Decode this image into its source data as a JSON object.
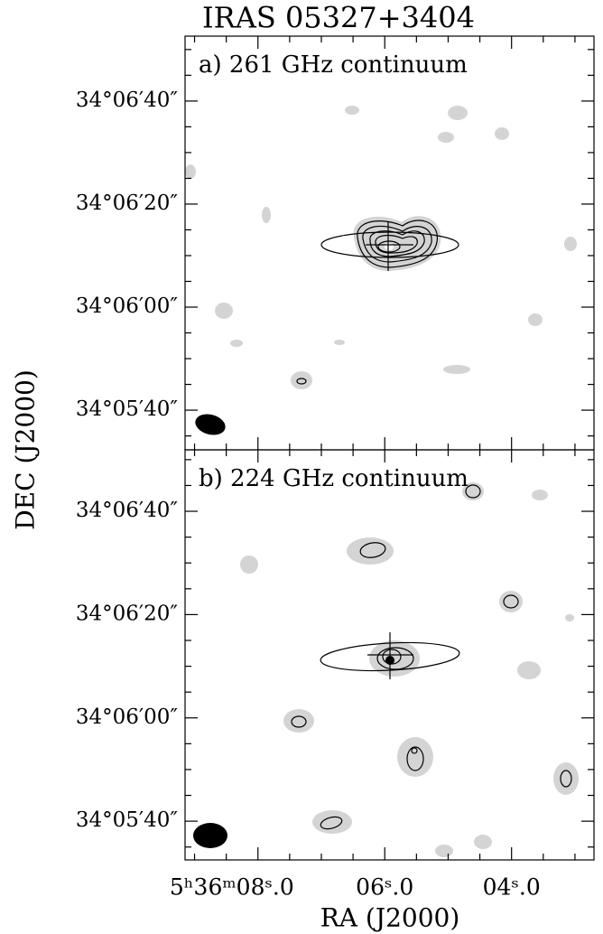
{
  "title": "IRAS 05327+3404",
  "x_label": "RA (J2000)",
  "y_label": "DEC (J2000)",
  "chart_data": [
    {
      "type": "contour",
      "label": "a) 261 GHz continuum",
      "xlim": [
        20169.15,
        20162.7
      ],
      "ylim": [
        122732.3,
        122812.6
      ],
      "xticks": [
        20168,
        20166,
        20164
      ],
      "yticks": [
        {
          "value": 122740,
          "label": "34°05′40″"
        },
        {
          "value": 122760,
          "label": "34°06′00″"
        },
        {
          "value": 122780,
          "label": "34°06′20″"
        },
        {
          "value": 122800,
          "label": "34°06′40″"
        }
      ]
    },
    {
      "type": "contour",
      "label": "b) 224 GHz continuum",
      "xlim": [
        20169.15,
        20162.7
      ],
      "ylim": [
        122732.5,
        122811.9
      ],
      "xticks": [
        {
          "value": 20168,
          "label": "5ʰ36ᵐ08ˢ.0"
        },
        {
          "value": 20166,
          "label": "06ˢ.0"
        },
        {
          "value": 20164,
          "label": "04ˢ.0"
        }
      ],
      "yticks": [
        {
          "value": 122740,
          "label": "34°05′40″"
        },
        {
          "value": 122760,
          "label": "34°06′00″"
        },
        {
          "value": 122780,
          "label": "34°06′20″"
        },
        {
          "value": 122800,
          "label": "34°06′40″"
        }
      ]
    }
  ]
}
